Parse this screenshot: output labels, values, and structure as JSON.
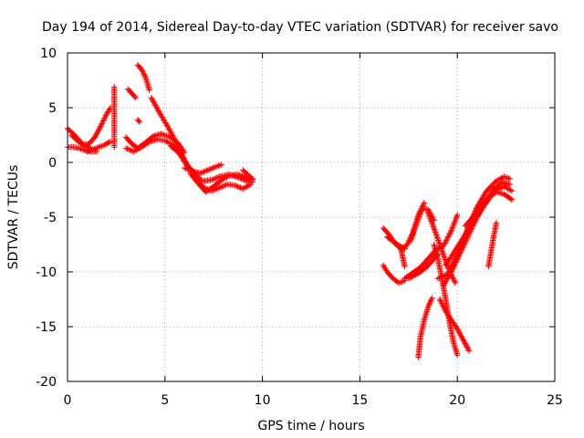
{
  "chart_data": {
    "type": "scatter",
    "title": "Day 194 of 2014, Sidereal Day-to-day VTEC variation (SDTVAR) for receiver savo",
    "xlabel": "GPS time / hours",
    "ylabel": "SDTVAR / TECUs",
    "xlim": [
      0,
      25
    ],
    "ylim": [
      -20,
      10
    ],
    "xticks": [
      0,
      5,
      10,
      15,
      20,
      25
    ],
    "yticks": [
      10,
      5,
      0,
      -5,
      -10,
      -15,
      -20
    ],
    "grid": true,
    "marker": "+",
    "color": "#ff0000",
    "tracks": [
      {
        "name": "t1",
        "x": [
          0.0,
          0.3,
          0.6,
          0.9,
          1.2
        ],
        "y": [
          3.1,
          2.6,
          2.0,
          1.5,
          1.3
        ]
      },
      {
        "name": "t2",
        "x": [
          0.0,
          0.3,
          0.6,
          0.9,
          1.2,
          1.5
        ],
        "y": [
          1.4,
          1.4,
          1.3,
          1.1,
          1.0,
          1.0
        ]
      },
      {
        "name": "t3",
        "x": [
          0.2,
          0.5,
          0.8,
          1.1,
          1.4,
          1.7,
          2.0,
          2.2
        ],
        "y": [
          2.5,
          2.0,
          1.6,
          1.7,
          2.3,
          3.3,
          4.4,
          5.0
        ]
      },
      {
        "name": "t4",
        "x": [
          1.0,
          1.3,
          1.6,
          1.9,
          2.2
        ],
        "y": [
          1.0,
          1.2,
          1.4,
          1.6,
          1.9
        ]
      },
      {
        "name": "t5",
        "x": [
          2.4,
          2.4,
          2.4,
          2.4
        ],
        "y": [
          6.9,
          2.7,
          2.1,
          1.4
        ]
      },
      {
        "name": "t6",
        "x": [
          3.1,
          3.3,
          3.5
        ],
        "y": [
          6.7,
          6.3,
          5.9
        ]
      },
      {
        "name": "t7",
        "x": [
          3.6,
          3.8,
          4.0,
          4.2
        ],
        "y": [
          8.9,
          8.5,
          7.8,
          6.6
        ]
      },
      {
        "name": "t8",
        "x": [
          3.6,
          3.7
        ],
        "y": [
          3.9,
          3.7
        ]
      },
      {
        "name": "t9",
        "x": [
          3.0,
          3.3,
          3.6,
          4.0,
          4.4,
          4.8,
          5.3,
          5.7,
          6.0
        ],
        "y": [
          2.3,
          1.7,
          1.3,
          1.8,
          2.4,
          2.6,
          2.3,
          1.7,
          0.9
        ]
      },
      {
        "name": "t10",
        "x": [
          3.0,
          3.4,
          3.8,
          4.2,
          4.6,
          5.0,
          5.4,
          5.8
        ],
        "y": [
          1.3,
          1.0,
          1.4,
          1.9,
          2.1,
          2.0,
          1.6,
          0.8
        ]
      },
      {
        "name": "t11",
        "x": [
          4.3,
          4.7,
          5.1,
          5.5,
          5.9,
          6.2,
          6.5
        ],
        "y": [
          5.9,
          4.6,
          3.4,
          2.1,
          0.6,
          -0.4,
          -0.9
        ]
      },
      {
        "name": "t12",
        "x": [
          5.3,
          5.7,
          6.1,
          6.5,
          6.9,
          7.4,
          7.8,
          8.3,
          8.8,
          9.2,
          9.5
        ],
        "y": [
          1.5,
          0.9,
          -0.2,
          -1.0,
          -1.7,
          -1.6,
          -1.3,
          -1.1,
          -1.4,
          -1.7,
          -1.8
        ]
      },
      {
        "name": "t13",
        "x": [
          6.0,
          6.4,
          6.8,
          7.2,
          7.6,
          7.9
        ],
        "y": [
          -0.5,
          -0.8,
          -1.0,
          -0.7,
          -0.4,
          -0.2
        ]
      },
      {
        "name": "t14",
        "x": [
          6.3,
          6.7,
          7.1,
          7.5,
          7.9,
          8.3,
          8.7,
          9.1,
          9.5
        ],
        "y": [
          -1.0,
          -1.9,
          -2.7,
          -2.2,
          -1.6,
          -1.2,
          -1.1,
          -1.3,
          -1.6
        ]
      },
      {
        "name": "t15",
        "x": [
          6.6,
          7.0,
          7.4,
          7.8,
          8.2,
          8.6,
          9.0,
          9.4
        ],
        "y": [
          -1.6,
          -2.3,
          -2.6,
          -2.3,
          -2.0,
          -2.1,
          -2.4,
          -2.0
        ]
      },
      {
        "name": "t16",
        "x": [
          9.0,
          9.3,
          9.5
        ],
        "y": [
          -0.7,
          -1.2,
          -1.5
        ]
      },
      {
        "name": "t17",
        "x": [
          16.2,
          16.4,
          16.7,
          17.0,
          17.3
        ],
        "y": [
          -9.4,
          -10.0,
          -10.6,
          -11.0,
          -10.8
        ]
      },
      {
        "name": "t18",
        "x": [
          16.2,
          16.5,
          16.8,
          17.1,
          17.4,
          17.7,
          18.0,
          18.3
        ],
        "y": [
          -6.0,
          -6.6,
          -7.4,
          -7.9,
          -7.6,
          -6.5,
          -4.8,
          -3.7
        ]
      },
      {
        "name": "t19",
        "x": [
          16.4,
          16.7,
          17.0,
          17.3
        ],
        "y": [
          -6.8,
          -7.2,
          -7.6,
          -7.9
        ]
      },
      {
        "name": "t20",
        "x": [
          17.1,
          17.2,
          17.3
        ],
        "y": [
          -7.7,
          -8.7,
          -9.5
        ]
      },
      {
        "name": "t21",
        "x": [
          17.3,
          17.7,
          18.1,
          18.5,
          18.9,
          19.3,
          19.7,
          20.0
        ],
        "y": [
          -10.6,
          -10.1,
          -9.6,
          -8.8,
          -8.0,
          -7.6,
          -6.2,
          -4.8
        ]
      },
      {
        "name": "t22",
        "x": [
          17.5,
          17.8,
          18.1,
          18.4,
          18.7,
          19.0
        ],
        "y": [
          -10.6,
          -10.3,
          -10.0,
          -9.6,
          -9.0,
          -8.4
        ]
      },
      {
        "name": "t23",
        "x": [
          17.6,
          17.9,
          18.2,
          18.5,
          18.8
        ],
        "y": [
          -7.2,
          -5.6,
          -4.2,
          -4.3,
          -5.3
        ]
      },
      {
        "name": "t24",
        "x": [
          18.0,
          18.1,
          18.3,
          18.5,
          18.7
        ],
        "y": [
          -17.8,
          -16.0,
          -14.4,
          -13.2,
          -12.4
        ]
      },
      {
        "name": "t25",
        "x": [
          18.5,
          18.8,
          19.1,
          19.4,
          19.7,
          19.9
        ],
        "y": [
          -4.6,
          -6.0,
          -7.5,
          -9.0,
          -10.3,
          -11.0
        ]
      },
      {
        "name": "t26",
        "x": [
          18.8,
          19.0,
          19.2,
          19.4,
          19.6,
          19.8,
          20.0
        ],
        "y": [
          -7.5,
          -8.8,
          -10.5,
          -12.5,
          -14.6,
          -16.4,
          -17.6
        ]
      },
      {
        "name": "t27",
        "x": [
          19.1,
          19.4,
          19.7,
          20.0,
          20.3,
          20.6
        ],
        "y": [
          -12.5,
          -13.6,
          -14.4,
          -15.2,
          -16.2,
          -17.2
        ]
      },
      {
        "name": "t28",
        "x": [
          19.0,
          19.5,
          20.0,
          20.5,
          21.0,
          21.5,
          22.0,
          22.4,
          22.7
        ],
        "y": [
          -10.6,
          -10.2,
          -8.4,
          -6.2,
          -4.1,
          -2.6,
          -1.7,
          -1.3,
          -1.5
        ]
      },
      {
        "name": "t29",
        "x": [
          19.3,
          19.8,
          20.3,
          20.8,
          21.3,
          21.8,
          22.3,
          22.7
        ],
        "y": [
          -11.2,
          -9.6,
          -7.7,
          -5.8,
          -4.0,
          -2.6,
          -1.8,
          -2.0
        ]
      },
      {
        "name": "t30",
        "x": [
          19.4,
          19.9,
          20.4,
          20.9,
          21.4,
          21.9,
          22.4,
          22.8
        ],
        "y": [
          -9.4,
          -8.0,
          -6.6,
          -5.2,
          -3.9,
          -2.6,
          -2.2,
          -2.6
        ]
      },
      {
        "name": "t31",
        "x": [
          20.4,
          20.8,
          21.2,
          21.6,
          22.0,
          22.4,
          22.8
        ],
        "y": [
          -5.8,
          -5.0,
          -4.0,
          -3.2,
          -2.7,
          -2.9,
          -3.4
        ]
      },
      {
        "name": "t32",
        "x": [
          21.6,
          21.8,
          22.0
        ],
        "y": [
          -9.5,
          -7.4,
          -5.5
        ]
      }
    ]
  }
}
